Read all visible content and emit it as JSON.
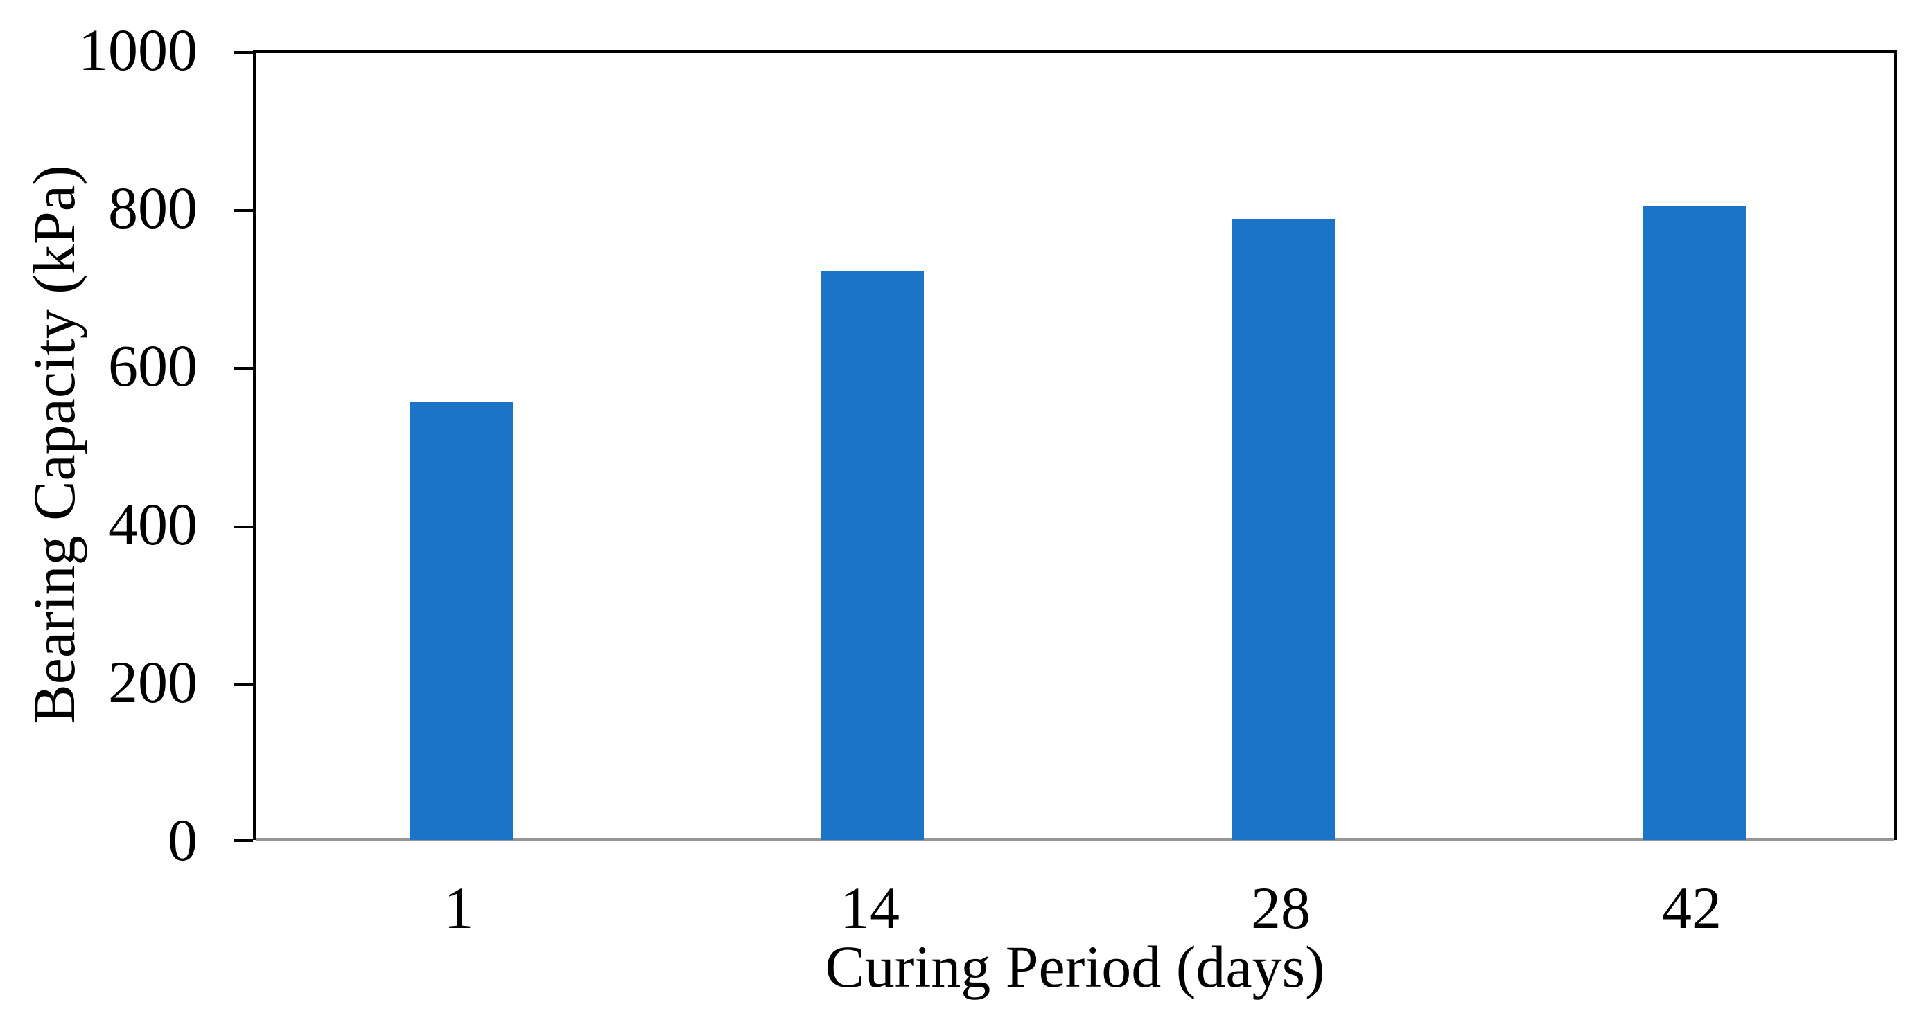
{
  "chart_data": {
    "type": "bar",
    "categories": [
      "1",
      "14",
      "28",
      "42"
    ],
    "values": [
      555,
      720,
      786,
      803
    ],
    "title": "",
    "xlabel": "Curing Period (days)",
    "ylabel": "Bearing Capacity (kPa)",
    "ylim": [
      0,
      1000
    ],
    "yticks": [
      0,
      200,
      400,
      600,
      800,
      1000
    ],
    "grid": "off",
    "legend": "none",
    "bar_color": "#1B74C8",
    "axis_color": "#000000",
    "baseline_color": "#969696"
  }
}
